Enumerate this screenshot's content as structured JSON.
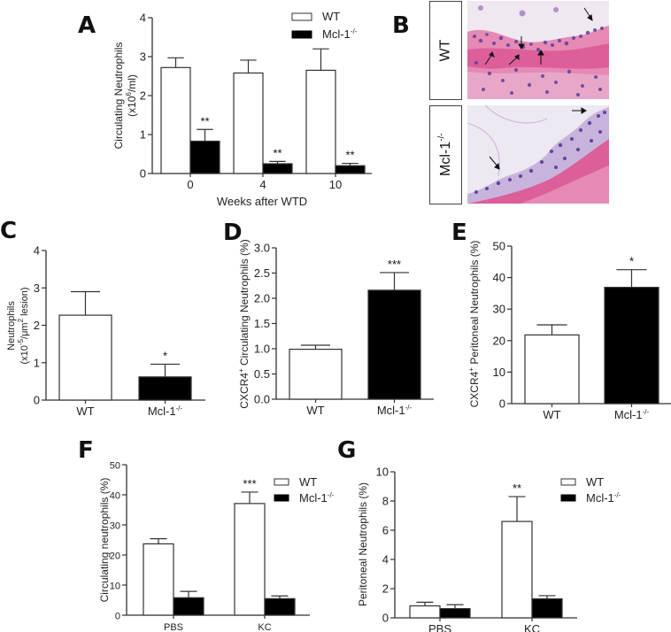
{
  "figure": {
    "panel_letters": [
      "A",
      "B",
      "C",
      "D",
      "E",
      "F",
      "G"
    ]
  },
  "legend": {
    "wt": "WT",
    "mcl": "Mcl-1",
    "mcl_sup": "-/-"
  },
  "histology": {
    "row_labels": [
      "WT",
      "Mcl-1"
    ],
    "row_label_sup": "-/-",
    "colors": {
      "eosin": "#e0609a",
      "hematoxylin": "#5a3f9e",
      "background": "#ece6ef"
    }
  },
  "colors": {
    "wt_fill": "#ffffff",
    "mcl_fill": "#000000",
    "axis": "#333333"
  },
  "chart_data": [
    {
      "id": "A",
      "type": "bar",
      "title": "",
      "xlabel": "Weeks after WTD",
      "ylabel": "Circulating Neutrophils",
      "ylabel2": "(x10",
      "ylabel2_sup": "6",
      "ylabel2_end": "/ml)",
      "categories": [
        "0",
        "4",
        "10"
      ],
      "series": [
        {
          "name": "WT",
          "values": [
            2.72,
            2.58,
            2.65
          ],
          "errors": [
            0.25,
            0.33,
            0.55
          ]
        },
        {
          "name": "Mcl-1-/-",
          "values": [
            0.83,
            0.25,
            0.2
          ],
          "errors": [
            0.3,
            0.06,
            0.06
          ]
        }
      ],
      "significance": [
        {
          "category": "0",
          "series": "Mcl-1-/-",
          "label": "**"
        },
        {
          "category": "4",
          "series": "Mcl-1-/-",
          "label": "**"
        },
        {
          "category": "10",
          "series": "Mcl-1-/-",
          "label": "**"
        }
      ],
      "ylim": [
        0,
        4
      ],
      "yticks": [
        "0",
        "1",
        "2",
        "3",
        "4"
      ],
      "legend_position": "upper right",
      "grid": false
    },
    {
      "id": "C",
      "type": "bar",
      "xlabel": "",
      "ylabel": "Neutrophils",
      "ylabel2": "(x10",
      "ylabel2_sup": "-5",
      "ylabel2_mid": "/μm",
      "ylabel2_sup2": "2",
      "ylabel2_end": " lesion)",
      "categories": [
        "WT",
        "Mcl-1-/-"
      ],
      "values": [
        2.27,
        0.62
      ],
      "errors": [
        0.63,
        0.34
      ],
      "significance": [
        {
          "category": "Mcl-1-/-",
          "label": "*"
        }
      ],
      "ylim": [
        0,
        4
      ],
      "yticks": [
        "0",
        "1",
        "2",
        "3",
        "4"
      ],
      "grid": false
    },
    {
      "id": "D",
      "type": "bar",
      "xlabel": "",
      "ylabel_pre": "CXCR4",
      "ylabel_sup": "+",
      "ylabel": " Circulating Neutrophils (%)",
      "categories": [
        "WT",
        "Mcl-1-/-"
      ],
      "values": [
        0.99,
        2.16
      ],
      "errors": [
        0.08,
        0.35
      ],
      "significance": [
        {
          "category": "Mcl-1-/-",
          "label": "***"
        }
      ],
      "ylim": [
        0,
        3.0
      ],
      "yticks": [
        "0.0",
        "0.5",
        "1.0",
        "1.5",
        "2.0",
        "2.5",
        "3.0"
      ],
      "grid": false
    },
    {
      "id": "E",
      "type": "bar",
      "xlabel": "",
      "ylabel_pre": "CXCR4",
      "ylabel_sup": "+",
      "ylabel": " Peritoneal Neutrophils (%)",
      "categories": [
        "WT",
        "Mcl-1-/-"
      ],
      "values": [
        21.8,
        36.9
      ],
      "errors": [
        3.2,
        5.6
      ],
      "significance": [
        {
          "category": "Mcl-1-/-",
          "label": "*"
        }
      ],
      "ylim": [
        0,
        50
      ],
      "yticks": [
        "0",
        "10",
        "20",
        "30",
        "40",
        "50"
      ],
      "grid": false
    },
    {
      "id": "F",
      "type": "bar",
      "xlabel": "",
      "ylabel": "Circulating neutrophils (%)",
      "categories": [
        "PBS",
        "KC"
      ],
      "series": [
        {
          "name": "WT",
          "values": [
            23.7,
            37.1
          ],
          "errors": [
            1.7,
            3.8
          ]
        },
        {
          "name": "Mcl-1-/-",
          "values": [
            5.8,
            5.5
          ],
          "errors": [
            2.1,
            0.9
          ]
        }
      ],
      "significance": [
        {
          "category": "KC",
          "series": "WT",
          "label": "***"
        }
      ],
      "ylim": [
        0,
        50
      ],
      "yticks": [
        "0",
        "10",
        "20",
        "30",
        "40",
        "50"
      ],
      "legend_position": "upper right",
      "grid": false
    },
    {
      "id": "G",
      "type": "bar",
      "xlabel": "",
      "ylabel": "Peritoneal Neutrophils (%)",
      "categories": [
        "PBS",
        "KC"
      ],
      "series": [
        {
          "name": "WT",
          "values": [
            0.82,
            6.6
          ],
          "errors": [
            0.25,
            1.7
          ]
        },
        {
          "name": "Mcl-1-/-",
          "values": [
            0.63,
            1.3
          ],
          "errors": [
            0.27,
            0.22
          ]
        }
      ],
      "significance": [
        {
          "category": "KC",
          "series": "WT",
          "label": "**"
        }
      ],
      "ylim": [
        0,
        10
      ],
      "yticks": [
        "0",
        "2",
        "4",
        "6",
        "8",
        "10"
      ],
      "legend_position": "upper right",
      "grid": false
    }
  ]
}
